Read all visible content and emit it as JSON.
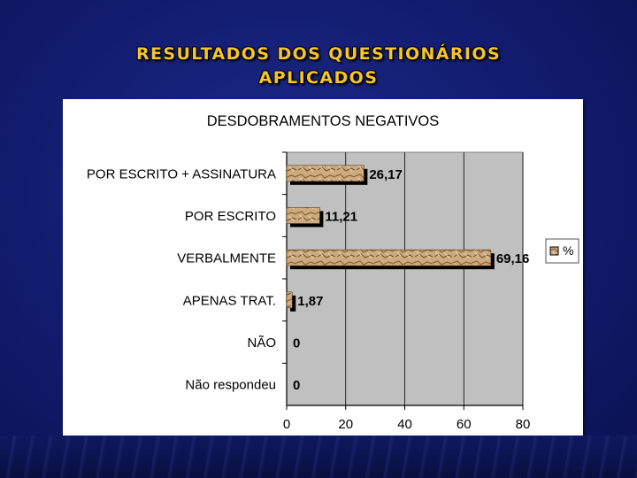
{
  "slide": {
    "title_line1": "RESULTADOS DOS QUESTIONÁRIOS",
    "title_line2": "APLICADOS"
  },
  "chart_data": {
    "type": "bar",
    "orientation": "horizontal",
    "title": "DESDOBRAMENTOS NEGATIVOS",
    "categories": [
      "POR ESCRITO + ASSINATURA",
      "POR ESCRITO",
      "VERBALMENTE",
      "APENAS TRAT.",
      "NÃO",
      "Não respondeu"
    ],
    "series": [
      {
        "name": "%",
        "values": [
          26.17,
          11.21,
          69.16,
          1.87,
          0,
          0
        ],
        "labels": [
          "26,17",
          "11,21",
          "69,16",
          "1,87",
          "0",
          "0"
        ]
      }
    ],
    "xlim": [
      0,
      80
    ],
    "xticks": [
      0,
      20,
      40,
      60,
      80
    ],
    "grid": true,
    "legend": "right",
    "colors": {
      "plot_background": "#c0c0c0",
      "bar_fill": "#c9a77a",
      "bar_texture": "#7a5532",
      "bar_shadow": "#000000",
      "gridline": "#000000"
    }
  }
}
